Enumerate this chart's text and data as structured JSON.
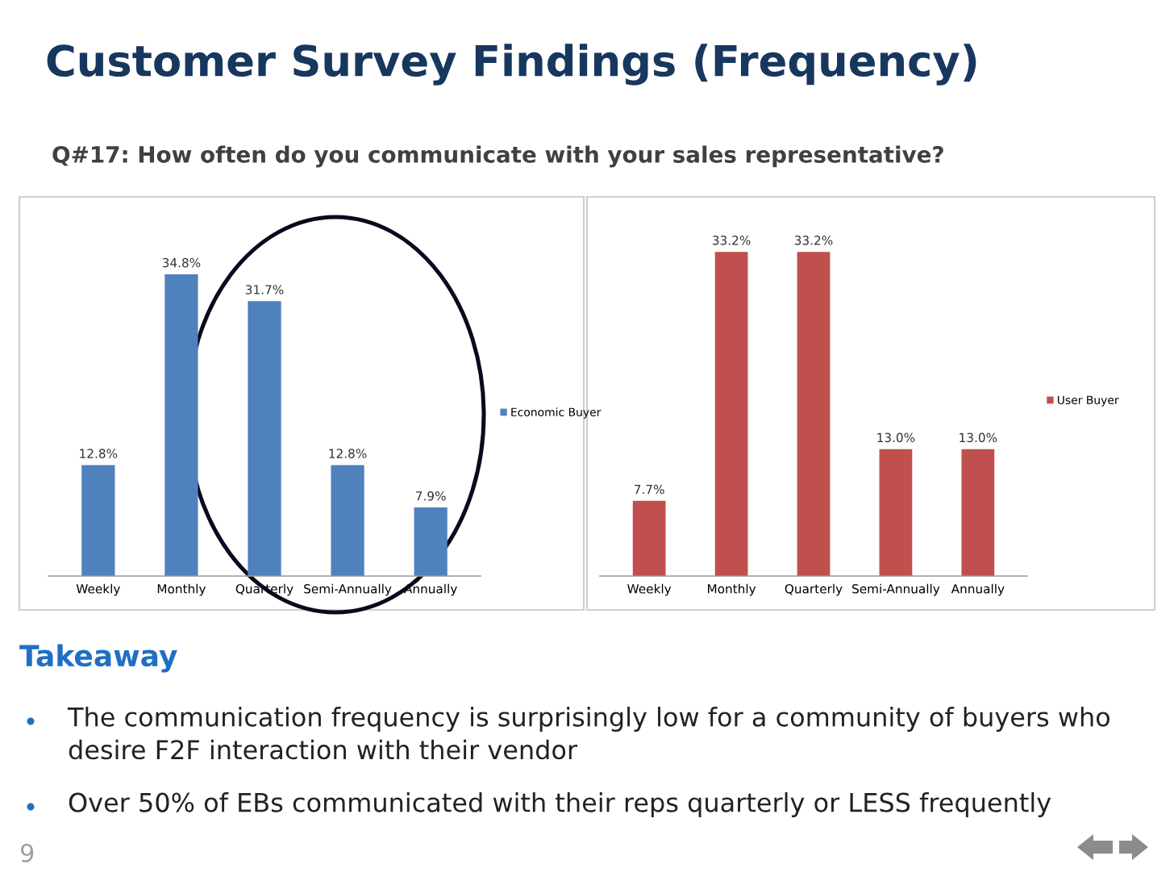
{
  "chart_data": [
    {
      "type": "bar",
      "title": "Customer Survey Findings (Frequency)",
      "subtitle": "Q#17: How often do you communicate with your sales representative?",
      "categories": [
        "Weekly",
        "Monthly",
        "Quarterly",
        "Semi-Annually",
        "Annually"
      ],
      "series": [
        {
          "name": "Economic Buyer",
          "color": "#4f81bd",
          "values": [
            12.8,
            34.8,
            31.7,
            12.8,
            7.9
          ],
          "value_labels": [
            "12.8%",
            "34.8%",
            "31.7%",
            "12.8%",
            "7.9%"
          ]
        }
      ],
      "legend": "right",
      "tick_labels": "x",
      "grid": false
    },
    {
      "type": "bar",
      "categories": [
        "Weekly",
        "Monthly",
        "Quarterly",
        "Semi-Annually",
        "Annually"
      ],
      "series": [
        {
          "name": "User Buyer",
          "color": "#c0504d",
          "values": [
            7.7,
            33.2,
            33.2,
            13.0,
            13.0
          ],
          "value_labels": [
            "7.7%",
            "33.2%",
            "33.2%",
            "13.0%",
            "13.0%"
          ]
        }
      ],
      "legend": "right",
      "tick_labels": "x",
      "grid": false
    },
    {
      "type": "other",
      "title": "Takeaway",
      "annotations": [
        "The communication frequency is surprisingly low for a community of buyers who desire F2F interaction with their vendor",
        "Over 50% of EBs communicated with their reps quarterly or LESS frequently",
        "9"
      ]
    }
  ]
}
